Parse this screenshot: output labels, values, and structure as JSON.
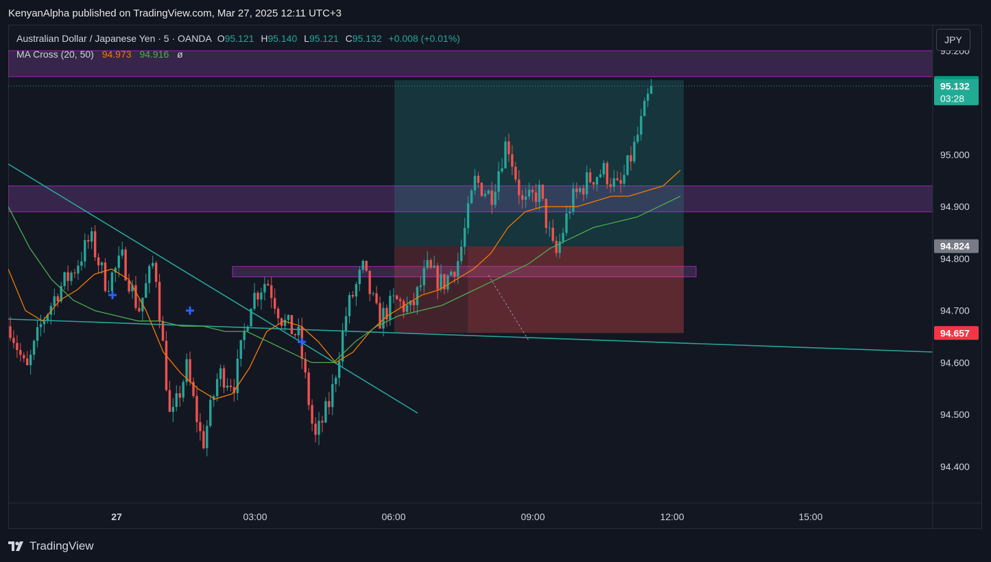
{
  "header": {
    "publisher": "KenyanAlpha published on TradingView.com, Mar 27, 2025 12:11 UTC+3"
  },
  "legend": {
    "symbol": "Australian Dollar / Japanese Yen · 5 · OANDA",
    "open_label": "O",
    "open": "95.121",
    "high_label": "H",
    "high": "95.140",
    "low_label": "L",
    "low": "95.121",
    "close_label": "C",
    "close": "95.132",
    "change": "+0.008 (+0.01%)",
    "indicator": "MA Cross (20, 50)",
    "ma20_value": "94.973",
    "ma50_value": "94.916",
    "extra": "ø"
  },
  "currency_button": "JPY",
  "price_badges": {
    "high_marker": "95.138",
    "last_price": "95.132",
    "countdown": "03:28",
    "entry_level": "94.824",
    "trendline_level": "94.657"
  },
  "footer": {
    "brand": "TradingView"
  },
  "colors": {
    "up": "#26a69a",
    "down": "#ef5350",
    "ma20": "#f57c00",
    "ma50": "#4caf50",
    "trend": "#26a69a",
    "zone": "#8e44ad",
    "cross": "#2962ff"
  },
  "chart_data": {
    "type": "candlestick",
    "ylim": [
      94.33,
      95.25
    ],
    "y_ticks": [
      "95.200",
      "95.000",
      "94.900",
      "94.800",
      "94.700",
      "94.600",
      "94.500",
      "94.400"
    ],
    "x_ticks": [
      "27",
      "03:00",
      "06:00",
      "09:00",
      "12:00",
      "15:00"
    ],
    "close_path": [
      94.67,
      94.58,
      94.68,
      94.74,
      94.78,
      94.84,
      94.75,
      94.8,
      94.7,
      94.8,
      94.48,
      94.59,
      94.44,
      94.58,
      94.56,
      94.72,
      94.76,
      94.68,
      94.65,
      94.45,
      94.53,
      94.7,
      94.78,
      94.68,
      94.72,
      94.7,
      94.78,
      94.75,
      94.8,
      94.95,
      94.92,
      95.03,
      94.9,
      94.93,
      94.8,
      94.91,
      94.95,
      94.97,
      94.93,
      95.02,
      95.13
    ],
    "ma20_path": [
      94.78,
      94.7,
      94.68,
      94.72,
      94.74,
      94.77,
      94.78,
      94.76,
      94.7,
      94.62,
      94.58,
      94.55,
      94.53,
      94.54,
      94.59,
      94.66,
      94.68,
      94.67,
      94.64,
      94.6,
      94.62,
      94.66,
      94.69,
      94.71,
      94.73,
      94.74,
      94.76,
      94.78,
      94.81,
      94.86,
      94.89,
      94.9,
      94.9,
      94.9,
      94.91,
      94.92,
      94.92,
      94.93,
      94.94,
      94.97
    ],
    "ma50_path": [
      94.9,
      94.82,
      94.76,
      94.72,
      94.7,
      94.69,
      94.68,
      94.68,
      94.67,
      94.67,
      94.66,
      94.66,
      94.64,
      94.62,
      94.6,
      94.6,
      94.64,
      94.67,
      94.69,
      94.7,
      94.71,
      94.73,
      94.75,
      94.77,
      94.79,
      94.82,
      94.84,
      94.86,
      94.87,
      94.88,
      94.9,
      94.92
    ],
    "zones": [
      {
        "from": 95.15,
        "to": 95.2
      },
      {
        "from": 94.89,
        "to": 94.94
      },
      {
        "from": 94.765,
        "to": 94.785
      }
    ],
    "long_position": {
      "entry": 94.824,
      "target": 95.138,
      "stop": 94.657
    },
    "horizontal_line": 95.132,
    "ma_cross_markers": [
      94.73,
      94.7,
      94.64
    ]
  }
}
